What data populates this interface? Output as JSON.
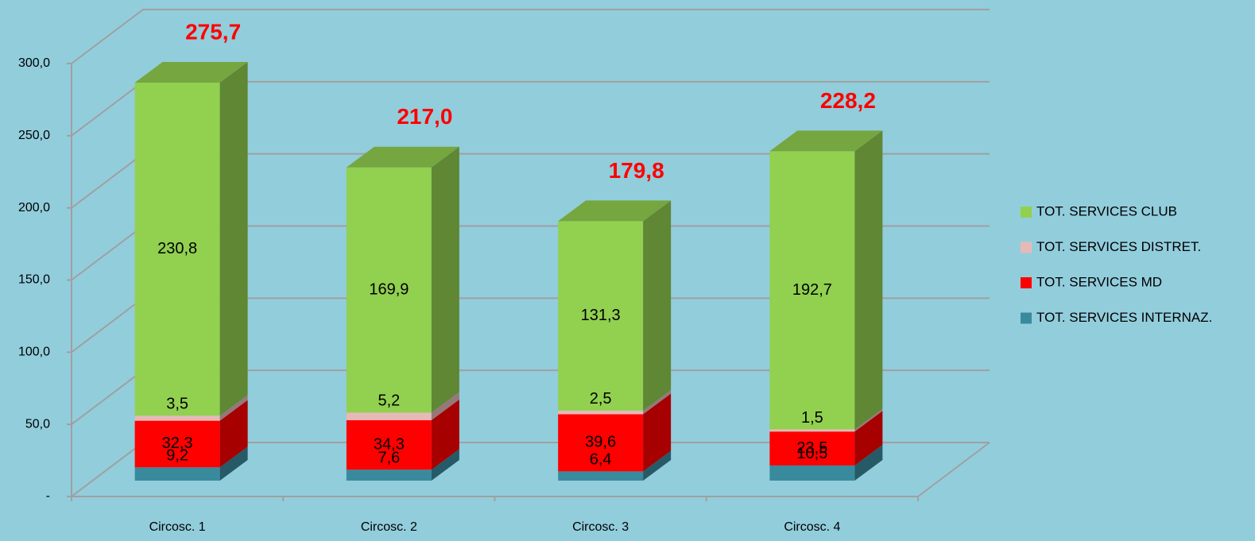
{
  "chart_data": {
    "type": "bar3d_stacked",
    "categories": [
      "Circosc. 1",
      "Circosc. 2",
      "Circosc. 3",
      "Circosc. 4"
    ],
    "series": [
      {
        "name": "TOT. SERVICES INTERNAZ.",
        "color": "#3a8a9e",
        "values": [
          9.2,
          7.6,
          6.4,
          10.5
        ],
        "value_labels": [
          "9,2",
          "7,6",
          "6,4",
          "10,5"
        ]
      },
      {
        "name": "TOT. SERVICES MD",
        "color": "#ff0000",
        "values": [
          32.3,
          34.3,
          39.6,
          23.5
        ],
        "value_labels": [
          "32,3",
          "34,3",
          "39,6",
          "23,5"
        ]
      },
      {
        "name": "TOT. SERVICES DISTRET.",
        "color": "#e6b9b8",
        "values": [
          3.5,
          5.2,
          2.5,
          1.5
        ],
        "value_labels": [
          "3,5",
          "5,2",
          "2,5",
          "1,5"
        ]
      },
      {
        "name": "TOT. SERVICES CLUB",
        "color": "#92d050",
        "values": [
          230.8,
          169.9,
          131.3,
          192.7
        ],
        "value_labels": [
          "230,8",
          "169,9",
          "131,3",
          "192,7"
        ]
      }
    ],
    "totals": {
      "color": "#ff0000",
      "values": [
        275.7,
        217.0,
        179.8,
        228.2
      ],
      "value_labels": [
        "275,7",
        "217,0",
        "179,8",
        "228,2"
      ]
    },
    "ylim": [
      0,
      300
    ],
    "yticks": [
      {
        "value": 0,
        "label": "-"
      },
      {
        "value": 50,
        "label": "50,0"
      },
      {
        "value": 100,
        "label": "100,0"
      },
      {
        "value": 150,
        "label": "150,0"
      },
      {
        "value": 200,
        "label": "200,0"
      },
      {
        "value": 250,
        "label": "250,0"
      },
      {
        "value": 300,
        "label": "300,0"
      }
    ],
    "grid": true,
    "legend": "right"
  }
}
